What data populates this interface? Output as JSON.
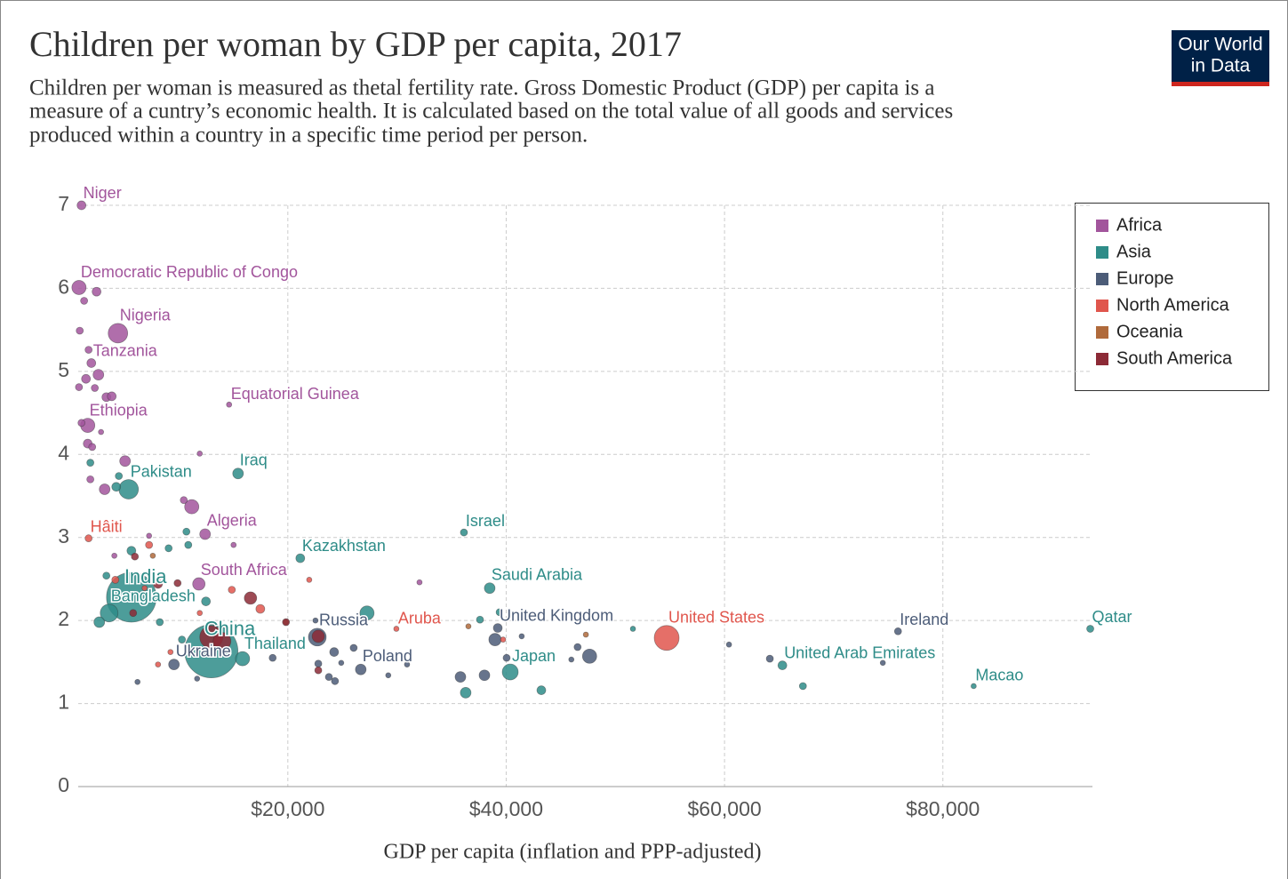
{
  "chart_data": {
    "type": "scatter",
    "title": "Children per woman by GDP per capita, 2017",
    "subtitle": [
      "Children per woman is measured as thetal fertility rate. Gross Domestic Product (GDP) per capita is a",
      "measure of a cuntry’s economic health. It is calculated based on the total value of all goods and services",
      "produced within a country in a specific time period per person."
    ],
    "logo": [
      "Our World",
      "in Data"
    ],
    "x_label": "GDP per capita (inflation and PPP-adjusted)",
    "xlim": [
      800,
      93700
    ],
    "xticks": [
      {
        "value": 20000,
        "label": "$20,000"
      },
      {
        "value": 40000,
        "label": "$40,000"
      },
      {
        "value": 60000,
        "label": "$60,000"
      },
      {
        "value": 80000,
        "label": "$80,000"
      }
    ],
    "ylim": [
      0,
      7
    ],
    "yticks": [
      0,
      1,
      2,
      3,
      4,
      5,
      6,
      7
    ],
    "grid": true,
    "legend": "top-right",
    "series": [
      {
        "name": "Africa",
        "color": "#a2559c",
        "x": [
          1100,
          870,
          4440,
          2000,
          14620,
          1670,
          12420,
          11850,
          2480,
          1340,
          940,
          1750,
          2650,
          1510,
          2320,
          3380,
          3870,
          870,
          1100,
          2890,
          1670,
          2080,
          5090,
          11930,
          1910,
          3220,
          11200,
          10470,
          15030,
          4110,
          7290,
          32060
        ],
        "values": [
          7.0,
          6.01,
          5.46,
          5.1,
          4.6,
          4.35,
          3.04,
          2.44,
          5.96,
          5.85,
          5.49,
          5.26,
          4.96,
          4.91,
          4.8,
          4.69,
          4.7,
          4.81,
          4.38,
          4.27,
          4.13,
          4.09,
          3.92,
          4.01,
          3.7,
          3.58,
          3.37,
          3.45,
          2.91,
          2.78,
          3.02,
          2.46
        ],
        "sizes": [
          11,
          54,
          128,
          11,
          0.4,
          54,
          22,
          36,
          11,
          4,
          4,
          4,
          22,
          11,
          4,
          11,
          11,
          4,
          4,
          0.4,
          11,
          4,
          22,
          0.4,
          4,
          22,
          54,
          4,
          0.4,
          0.4,
          0.4,
          0.4
        ],
        "labels": [
          "Niger",
          "Democratic Republic of Congo",
          "Nigeria",
          "Tanzania",
          "Equatorial Guinea",
          "Ethiopia",
          "Algeria",
          "South Africa",
          null,
          null,
          null,
          null,
          null,
          null,
          null,
          null,
          null,
          null,
          null,
          null,
          null,
          null,
          null,
          null,
          null,
          null,
          null,
          null,
          null,
          null,
          null,
          null
        ]
      },
      {
        "name": "Asia",
        "color": "#2e8c88",
        "x": [
          15440,
          5420,
          21140,
          36130,
          5670,
          3630,
          12990,
          15850,
          38490,
          40370,
          65300,
          82820,
          93500,
          1910,
          4520,
          4280,
          5670,
          3380,
          9080,
          10710,
          10880,
          27250,
          2730,
          37600,
          39400,
          36290,
          43220,
          51610,
          67180,
          10300,
          12500,
          8270
        ],
        "values": [
          3.77,
          3.58,
          2.75,
          3.06,
          2.28,
          2.09,
          1.63,
          1.54,
          2.39,
          1.38,
          1.46,
          1.21,
          1.9,
          3.9,
          3.74,
          3.61,
          2.84,
          2.54,
          2.87,
          3.07,
          2.91,
          2.09,
          1.98,
          2.01,
          2.1,
          1.13,
          1.16,
          1.9,
          1.21,
          1.77,
          2.23,
          1.98
        ],
        "sizes": [
          22,
          128,
          11,
          4,
          1156,
          100,
          1344,
          54,
          22,
          75,
          11,
          0.4,
          4,
          4,
          4,
          11,
          11,
          4,
          4,
          4,
          4,
          54,
          22,
          4,
          4,
          22,
          11,
          0.4,
          4,
          4,
          11,
          4
        ],
        "labels": [
          "Iraq",
          "Pakistan",
          "Kazakhstan",
          "Israel",
          "India",
          "Bangladesh",
          "China",
          "Thailand",
          "Saudi Arabia",
          "Japan",
          "United Arab Emirates",
          "Macao",
          "Qatar",
          null,
          null,
          null,
          null,
          null,
          null,
          null,
          null,
          null,
          null,
          null,
          null,
          null,
          null,
          null,
          null,
          null,
          null,
          null
        ]
      },
      {
        "name": "Europe",
        "color": "#4c5c78",
        "x": [
          22700,
          39230,
          26680,
          9570,
          75890,
          38980,
          47640,
          35810,
          38010,
          24240,
          26030,
          22790,
          23760,
          24320,
          24890,
          18610,
          46540,
          45970,
          40040,
          41420,
          60410,
          64150,
          74500,
          6230,
          11690,
          29200,
          30920,
          22530
        ],
        "values": [
          1.8,
          1.91,
          1.41,
          1.47,
          1.87,
          1.77,
          1.57,
          1.32,
          1.34,
          1.62,
          1.67,
          1.48,
          1.32,
          1.27,
          1.49,
          1.55,
          1.68,
          1.53,
          1.55,
          1.81,
          1.71,
          1.54,
          1.49,
          1.26,
          1.3,
          1.34,
          1.47,
          2.0
        ],
        "sizes": [
          100,
          11,
          22,
          22,
          4,
          36,
          54,
          22,
          22,
          11,
          4,
          4,
          4,
          4,
          0.4,
          4,
          4,
          0.4,
          4,
          0.4,
          0.4,
          4,
          0.4,
          0.4,
          0.4,
          0.4,
          0.4,
          0.4
        ],
        "labels": [
          "Russia",
          "United Kingdom",
          "Poland",
          "Ukraine",
          "Ireland",
          null,
          null,
          null,
          null,
          null,
          null,
          null,
          null,
          null,
          null,
          null,
          null,
          null,
          null,
          null,
          null,
          null,
          null,
          null,
          null,
          null,
          null,
          null
        ]
      },
      {
        "name": "North America",
        "color": "#e0564d",
        "x": [
          1750,
          29940,
          54700,
          7290,
          4200,
          14870,
          21960,
          17480,
          9250,
          8110,
          39720,
          6880,
          11930
        ],
        "values": [
          2.99,
          1.9,
          1.79,
          2.91,
          2.49,
          2.37,
          2.49,
          2.14,
          1.62,
          1.47,
          1.77,
          2.39,
          2.09
        ],
        "sizes": [
          4,
          0.4,
          235,
          4,
          4,
          4,
          0.4,
          11,
          0.4,
          0.4,
          0.4,
          0.4,
          0.4
        ],
        "labels": [
          "Hâiti",
          "Aruba",
          "United States",
          null,
          null,
          null,
          null,
          null,
          null,
          null,
          null,
          null,
          null
        ]
      },
      {
        "name": "Oceania",
        "color": "#b06a3b",
        "x": [
          36540,
          47300,
          7630,
          19830
        ],
        "values": [
          1.93,
          1.83,
          2.78,
          1.98
        ],
        "sizes": [
          0.4,
          0.4,
          0.4,
          0.4
        ],
        "labels": [
          null,
          null,
          null,
          null
        ]
      },
      {
        "name": "South America",
        "color": "#8c2a36",
        "x": [
          12990,
          13970,
          16580,
          22790,
          5990,
          8110,
          9900,
          19830,
          22790,
          5830
        ],
        "values": [
          1.8,
          1.75,
          2.27,
          1.81,
          2.77,
          2.44,
          2.45,
          1.98,
          1.4,
          2.09
        ],
        "sizes": [
          196,
          100,
          36,
          36,
          4,
          11,
          4,
          4,
          4,
          4
        ],
        "labels": [
          null,
          null,
          null,
          null,
          null,
          null,
          null,
          null,
          null,
          null
        ]
      }
    ]
  }
}
